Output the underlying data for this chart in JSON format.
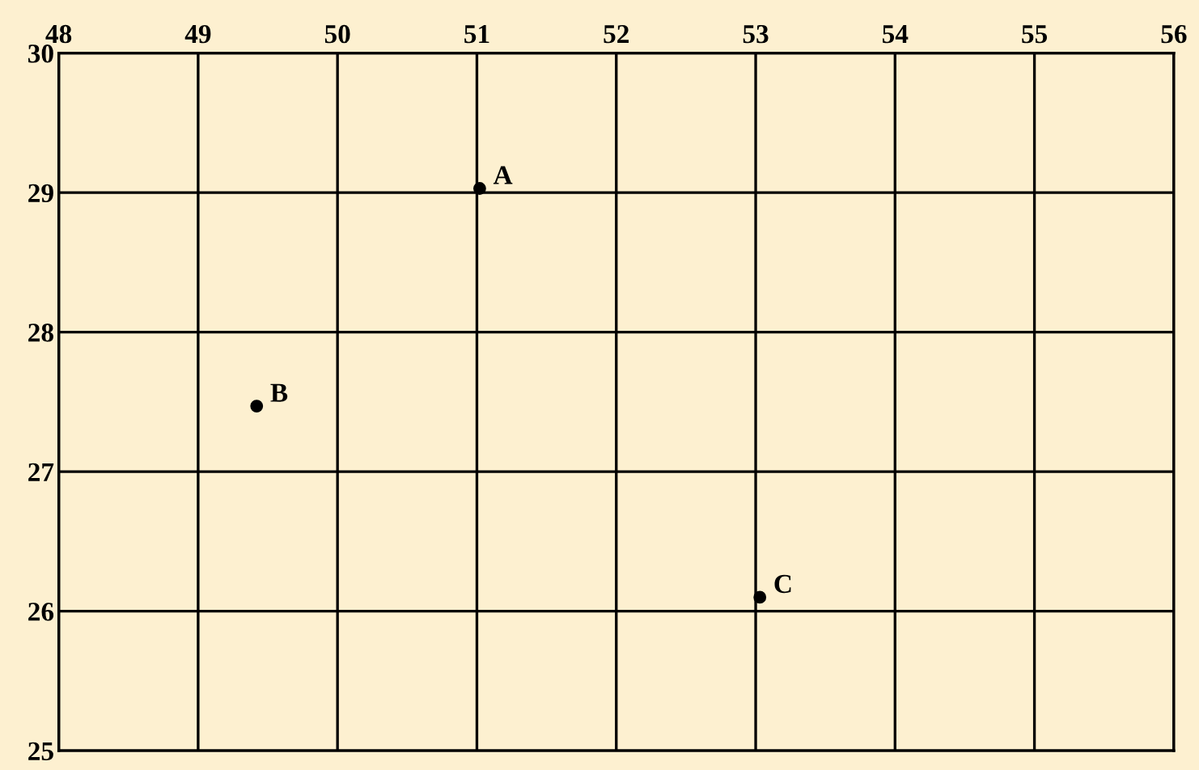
{
  "chart_data": {
    "type": "scatter",
    "x": [
      51.02,
      49.42,
      53.03
    ],
    "series": [
      {
        "color": "#000000",
        "values": [
          29.03,
          27.47,
          26.1
        ]
      }
    ],
    "xlim": [
      48,
      56
    ],
    "xticks": [
      48,
      49,
      50,
      51,
      52,
      53,
      54,
      55,
      56
    ],
    "ylim": [
      25,
      30
    ],
    "yticks": [
      25,
      26,
      27,
      28,
      29,
      30
    ],
    "grid": true,
    "marker": "circle",
    "annotations": [
      {
        "text": "A",
        "x": 51.02,
        "y": 29.03
      },
      {
        "text": "B",
        "x": 49.42,
        "y": 27.47
      },
      {
        "text": "C",
        "x": 53.03,
        "y": 26.1
      }
    ]
  }
}
